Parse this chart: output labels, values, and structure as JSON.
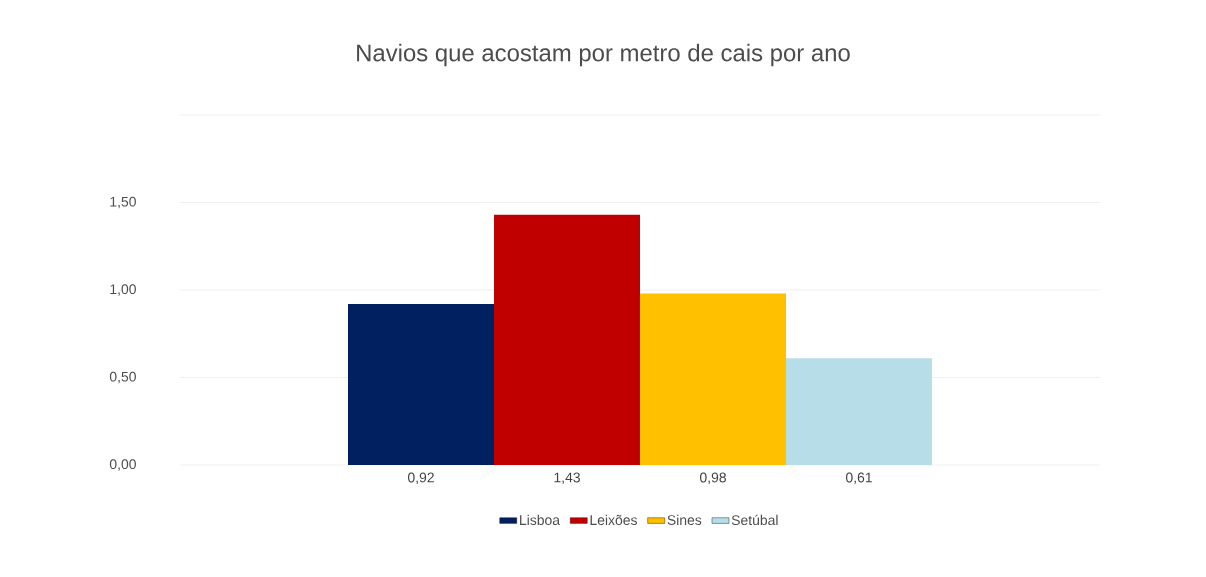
{
  "chart_data": {
    "type": "bar",
    "title": "Navios que acostam por metro de cais por ano",
    "categories": [
      null
    ],
    "series": [
      {
        "name": "Lisboa",
        "color": "#002060",
        "values": [
          0.92
        ],
        "value_labels": [
          "0,92"
        ]
      },
      {
        "name": "Leixões",
        "color": "#c00000",
        "values": [
          1.43
        ],
        "value_labels": [
          "1,43"
        ]
      },
      {
        "name": "Sines",
        "color": "#ffc000",
        "values": [
          0.98
        ],
        "value_labels": [
          "0,98"
        ]
      },
      {
        "name": "Setúbal",
        "color": "#b7dee8",
        "values": [
          0.61
        ],
        "value_labels": [
          "0,61"
        ]
      }
    ],
    "ylim": [
      0,
      2
    ],
    "yticks": [
      {
        "value": 0,
        "label": "0,00"
      },
      {
        "value": 0.5,
        "label": "0,50"
      },
      {
        "value": 1,
        "label": "1,00"
      },
      {
        "value": 1.5,
        "label": "1,50"
      },
      {
        "value": 2,
        "label": null
      }
    ],
    "grid": "y",
    "legend": "bottom"
  }
}
